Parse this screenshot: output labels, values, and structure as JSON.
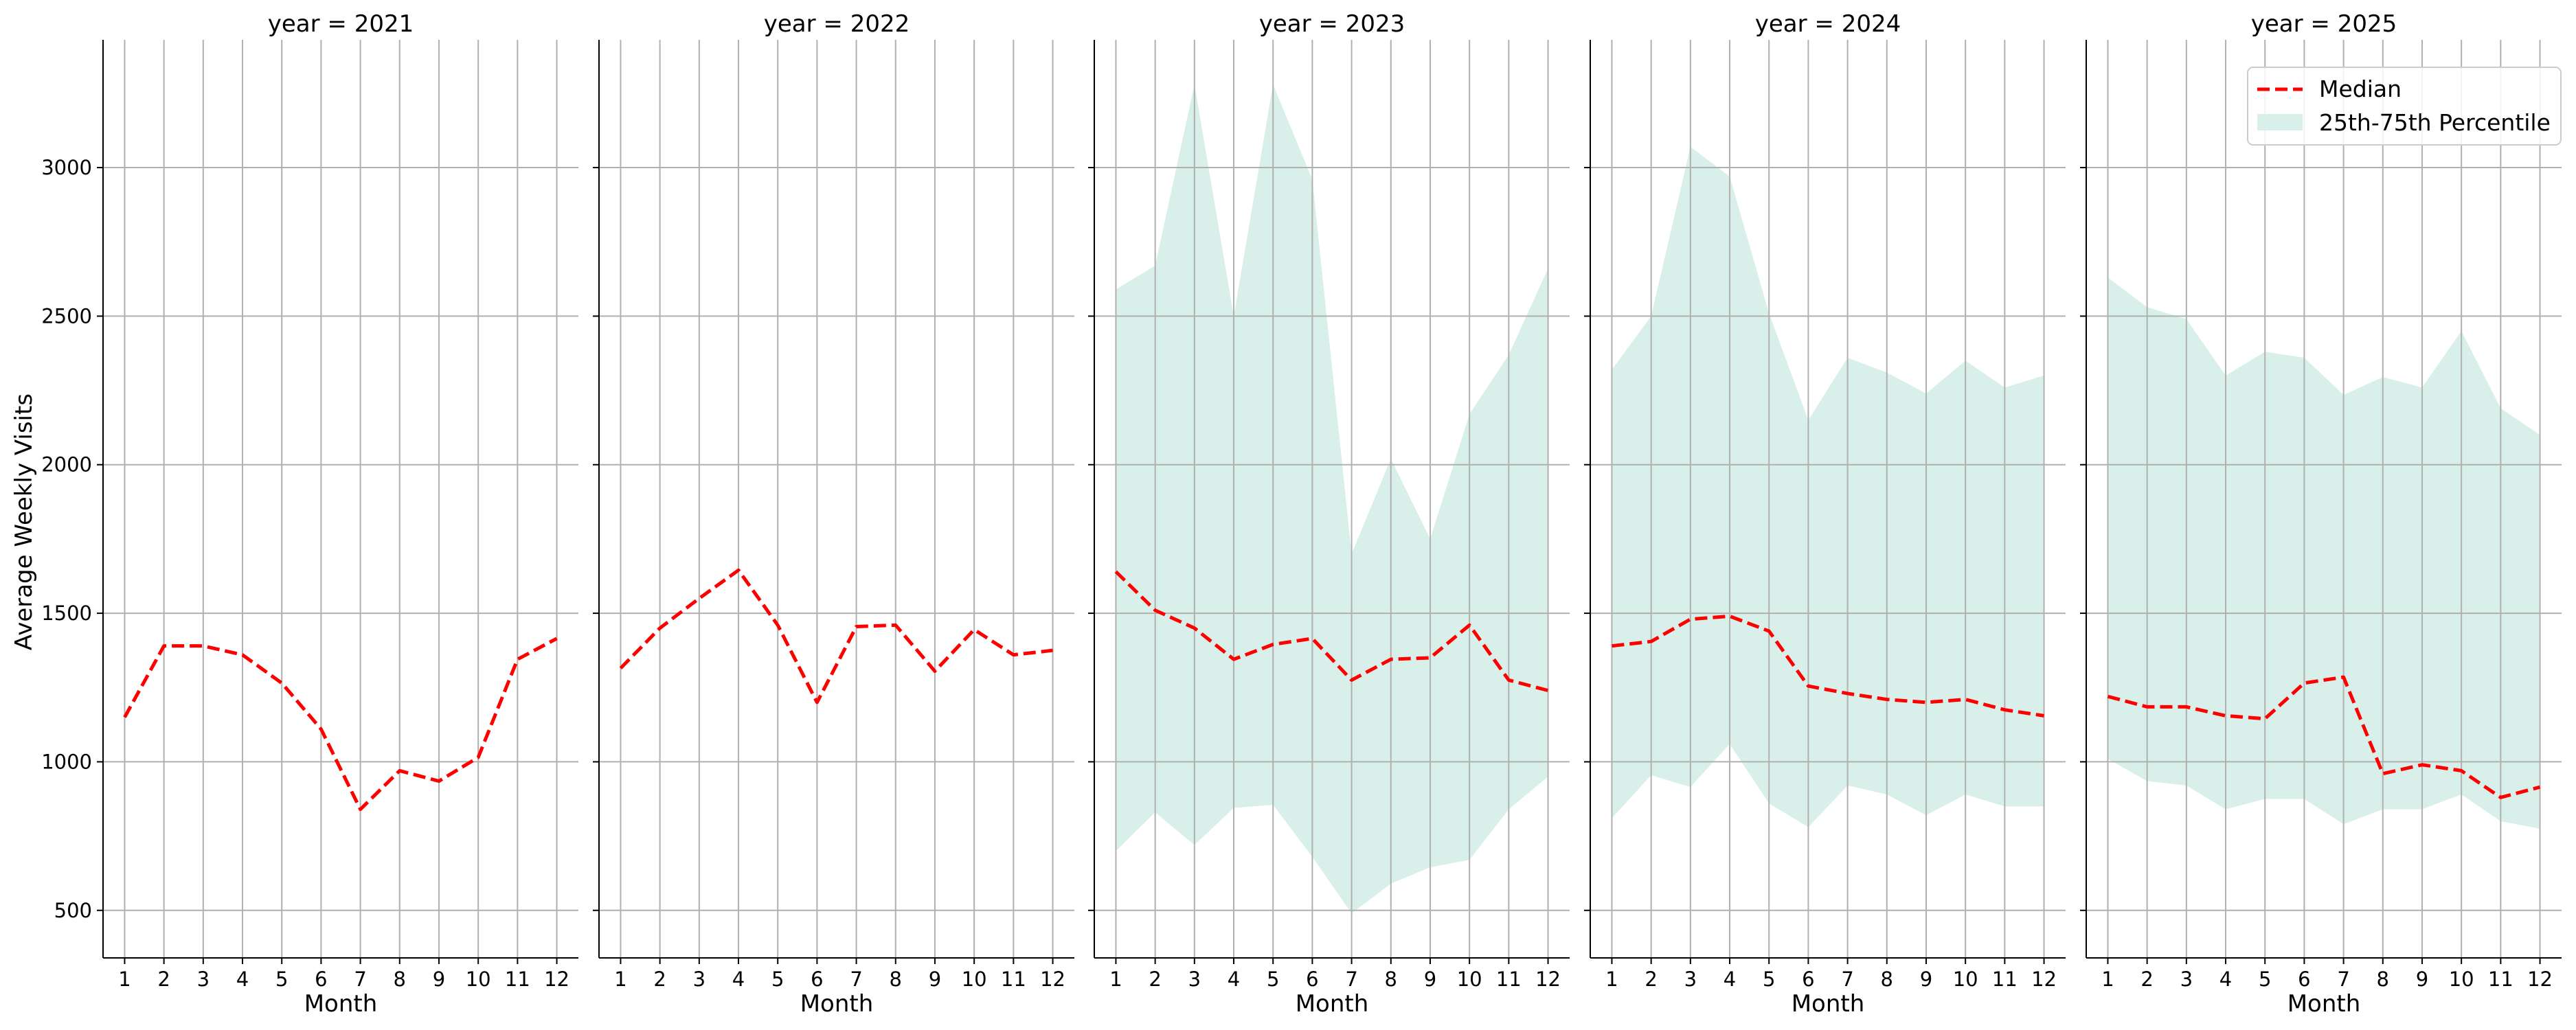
{
  "chart_data": {
    "type": "line",
    "facet_label": "year",
    "facet_titles": [
      "year = 2021",
      "year = 2022",
      "year = 2023",
      "year = 2024",
      "year = 2025"
    ],
    "xlabel": "Month",
    "ylabel": "Average Weekly Visits",
    "x": [
      1,
      2,
      3,
      4,
      5,
      6,
      7,
      8,
      9,
      10,
      11,
      12
    ],
    "x_tick_labels": [
      "1",
      "2",
      "3",
      "4",
      "5",
      "6",
      "7",
      "8",
      "9",
      "10",
      "11",
      "12"
    ],
    "y_ticks": [
      500,
      1000,
      1500,
      2000,
      2500,
      3000
    ],
    "y_tick_labels": [
      "500",
      "1000",
      "1500",
      "2000",
      "2500",
      "3000"
    ],
    "ylim": [
      340,
      3430
    ],
    "xlim": [
      0.45,
      12.55
    ],
    "grid": true,
    "legend_position": "upper-right of last panel",
    "legend": [
      "Median",
      "25th-75th Percentile"
    ],
    "colors": {
      "median": "#ff0000",
      "band": "#d9f0ea"
    },
    "panels": [
      {
        "year": 2021,
        "median": [
          1150,
          1390,
          1390,
          1360,
          1265,
          1110,
          840,
          970,
          935,
          1015,
          1345,
          1415
        ],
        "p25": null,
        "p75": null
      },
      {
        "year": 2022,
        "median": [
          1315,
          1450,
          1550,
          1645,
          1460,
          1200,
          1455,
          1460,
          1305,
          1445,
          1360,
          1375
        ],
        "p25": null,
        "p75": null
      },
      {
        "year": 2023,
        "median": [
          1640,
          1510,
          1450,
          1345,
          1395,
          1415,
          1275,
          1345,
          1350,
          1460,
          1275,
          1240
        ],
        "p25": [
          700,
          830,
          720,
          845,
          855,
          680,
          490,
          590,
          645,
          670,
          840,
          950
        ],
        "p75": [
          2590,
          2670,
          3280,
          2500,
          3280,
          2960,
          1700,
          2020,
          1750,
          2170,
          2370,
          2660
        ]
      },
      {
        "year": 2024,
        "median": [
          1390,
          1405,
          1480,
          1490,
          1440,
          1255,
          1230,
          1210,
          1200,
          1210,
          1175,
          1155
        ],
        "p25": [
          810,
          955,
          915,
          1060,
          860,
          780,
          920,
          890,
          820,
          890,
          850,
          850
        ],
        "p75": [
          2320,
          2500,
          3070,
          2970,
          2510,
          2150,
          2360,
          2310,
          2240,
          2350,
          2260,
          2300
        ]
      },
      {
        "year": 2025,
        "median": [
          1220,
          1185,
          1185,
          1155,
          1145,
          1265,
          1285,
          960,
          990,
          970,
          880,
          915
        ],
        "p25": [
          1010,
          935,
          920,
          840,
          875,
          875,
          790,
          840,
          840,
          890,
          800,
          775
        ],
        "p75": [
          2630,
          2530,
          2490,
          2300,
          2380,
          2360,
          2235,
          2295,
          2260,
          2450,
          2190,
          2100
        ]
      }
    ]
  }
}
